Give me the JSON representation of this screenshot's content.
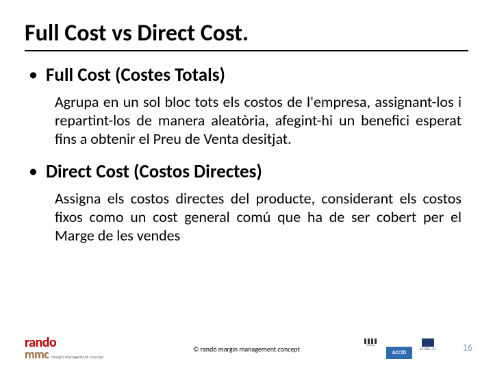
{
  "title": "Full Cost vs Direct Cost.",
  "sections": [
    {
      "heading": "Full Cost (Costes Totals)",
      "body": "Agrupa en un sol bloc tots els costos de l'empresa, assignant-los i repartint-los de manera aleatòria, afegint-hi un benefici esperat fins a obtenir el Preu de Venta desitjat."
    },
    {
      "heading": "Direct Cost (Costos Directes)",
      "body": "Assigna els costos directes del producte, considerant els costos fixos como un cost general comú que ha de ser cobert per el Marge de les vendes"
    }
  ],
  "footer": {
    "logo_top": "rando",
    "logo_bottom": "mmc",
    "logo_sub": "margin management concept",
    "copyright": "© rando margin management concept",
    "accid_label": "ACCID",
    "eoi_label": "EL OBL...GI"
  },
  "page_number": "16",
  "colors": {
    "title_color": "#000000",
    "brand_red": "#c00000",
    "brand_brown": "#9c6a3c",
    "accid_blue": "#2e6bb0",
    "pagenum_color": "#8a9ab0"
  }
}
